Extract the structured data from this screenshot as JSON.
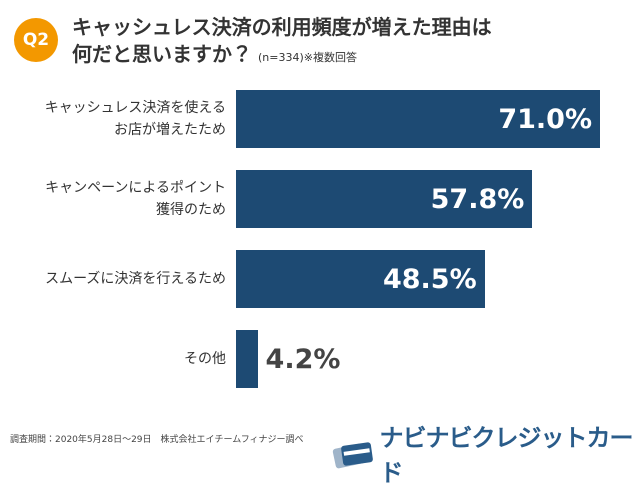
{
  "badge": "Q2",
  "chart_data": {
    "type": "bar",
    "orientation": "horizontal",
    "title": "キャッシュレス決済の利用頻度が増えた理由は\n何だと思いますか？",
    "subtitle": "(n=334)※複数回答",
    "categories": [
      "キャッシュレス決済を使える\nお店が増えたため",
      "キャンペーンによるポイント\n獲得のため",
      "スムーズに決済を行えるため",
      "その他"
    ],
    "values": [
      71.0,
      57.8,
      48.5,
      4.2
    ],
    "value_labels": [
      "71.0%",
      "57.8%",
      "48.5%",
      "4.2%"
    ],
    "color": "#1d4a73"
  },
  "source": "調査期間：2020年5月28日～29日　株式会社エイチームフィナジー調べ",
  "logo": "ナビナビクレジットカード"
}
